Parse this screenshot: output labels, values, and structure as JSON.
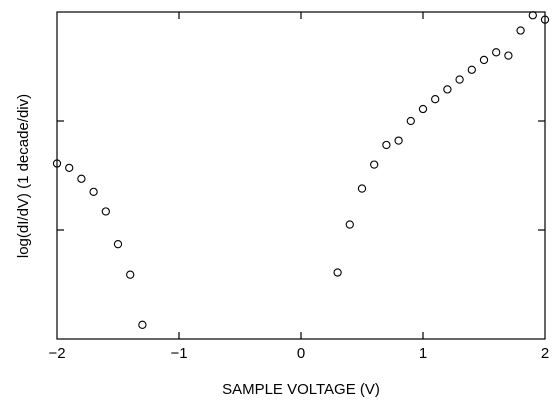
{
  "chart_data": {
    "type": "scatter",
    "title": "",
    "xlabel": "SAMPLE VOLTAGE (V)",
    "ylabel": "log(dI/dV)   (1 decade/div)",
    "xlim": [
      -2,
      2
    ],
    "ylim": [
      0,
      3
    ],
    "x_ticks": [
      -2,
      -1,
      0,
      1,
      2
    ],
    "x_tick_labels": [
      "−2",
      "−1",
      "0",
      "1",
      "2"
    ],
    "y_ticks": [
      1,
      2
    ],
    "grid": false,
    "marker": "open-circle",
    "series": [
      {
        "points": [
          [
            -2.0,
            1.61
          ],
          [
            -1.9,
            1.57
          ],
          [
            -1.8,
            1.47
          ],
          [
            -1.7,
            1.35
          ],
          [
            -1.6,
            1.17
          ],
          [
            -1.5,
            0.87
          ],
          [
            -1.4,
            0.59
          ],
          [
            -1.3,
            0.13
          ],
          [
            0.3,
            0.61
          ],
          [
            0.4,
            1.05
          ],
          [
            0.5,
            1.38
          ],
          [
            0.6,
            1.6
          ],
          [
            0.7,
            1.78
          ],
          [
            0.8,
            1.82
          ],
          [
            0.9,
            2.0
          ],
          [
            1.0,
            2.11
          ],
          [
            1.1,
            2.2
          ],
          [
            1.2,
            2.29
          ],
          [
            1.3,
            2.38
          ],
          [
            1.4,
            2.47
          ],
          [
            1.5,
            2.56
          ],
          [
            1.6,
            2.63
          ],
          [
            1.7,
            2.6
          ],
          [
            1.8,
            2.83
          ],
          [
            1.9,
            2.97
          ],
          [
            2.0,
            2.93
          ]
        ]
      }
    ]
  }
}
